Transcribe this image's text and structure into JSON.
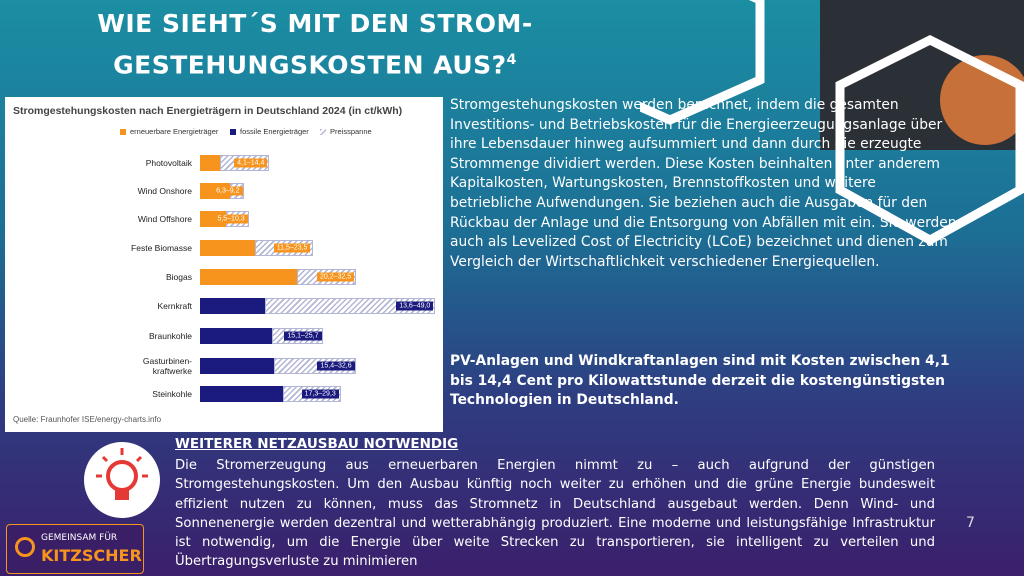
{
  "slide_title": {
    "line1": "WIE SIEHT´S MIT DEN STROM-",
    "line2": "GESTEHUNGSKOSTEN AUS?",
    "sup": "4"
  },
  "chart_data": {
    "type": "range-bar",
    "title": "Stromgestehungskosten nach Energieträgern in Deutschland 2024 (in ct/kWh)",
    "legend": [
      {
        "name": "erneuerbare Energieträger",
        "color": "#f7941d"
      },
      {
        "name": "fossile Energieträger",
        "color": "#1b1a7e"
      },
      {
        "name": "Preisspanne",
        "color": "#b3b6d4"
      }
    ],
    "categories": [
      "Photovoltaik",
      "Wind Onshore",
      "Wind Offshore",
      "Feste Biomasse",
      "Biogas",
      "Kernkraft",
      "Braunkohle",
      "Gasturbinen-\nkraftwerke",
      "Steinkohle"
    ],
    "kind": [
      0,
      0,
      0,
      0,
      0,
      1,
      1,
      1,
      1
    ],
    "low": [
      4.1,
      6.3,
      5.5,
      11.5,
      20.2,
      13.6,
      15.1,
      15.4,
      17.3
    ],
    "high": [
      14.4,
      9.2,
      10.3,
      23.5,
      32.5,
      49.0,
      25.7,
      32.6,
      29.3
    ],
    "value_labels": [
      "4,1–14,4",
      "6,3–9,2",
      "5,5–10,3",
      "11,5–23,5",
      "20,2–32,5",
      "13,6–49,0",
      "15,1–25,7",
      "15,4–32,6",
      "17,3–29,3"
    ],
    "source": "Quelle: Fraunhofer ISE/energy-charts.info"
  },
  "intro": "Stromgestehungskosten werden berechnet, indem die gesamten Investitions- und Betriebskosten für die Energieerzeugungsanlage über ihre Lebensdauer hinweg aufsummiert und dann durch die erzeugte Strommenge dividiert werden. Diese Kosten beinhalten unter anderem Kapitalkosten, Wartungskosten, Brennstoffkosten und weitere betriebliche Aufwendungen. Sie beziehen auch die Ausgaben für den Rückbau der Anlage und die Entsorgung von Abfällen mit ein. Sie werden auch als Levelized Cost of Electricity (LCoE) bezeichnet und dienen zum Vergleich der Wirtschaftlichkeit verschiedener Energiequellen.",
  "highlight": "PV-Anlagen und Windkraftanlagen sind mit Kosten zwischen 4,1 bis 14,4 Cent pro Kilowattstunde derzeit die kostengünstigsten Technologien in Deutschland.",
  "section": {
    "heading": "WEITERER NETZAUSBAU NOTWENDIG",
    "body": "Die Stromerzeugung aus erneuerbaren Energien nimmt zu – auch aufgrund der günstigen Stromgestehungskosten. Um den Ausbau künftig noch weiter zu erhöhen und die grüne Energie bundesweit effizient nutzen zu können, muss das Stromnetz in Deutschland ausgebaut werden. Denn Wind- und Sonnenenergie werden dezentral und wetterabhängig produziert. Eine moderne und leistungsfähige Infrastruktur ist notwendig, um die Energie über weite Strecken zu transportieren, sie intelligent zu verteilen und Übertragungsverluste zu minimieren"
  },
  "page_number": "7",
  "logo": {
    "line1": "GEMEINSAM FÜR",
    "line2": "KITZSCHER"
  }
}
